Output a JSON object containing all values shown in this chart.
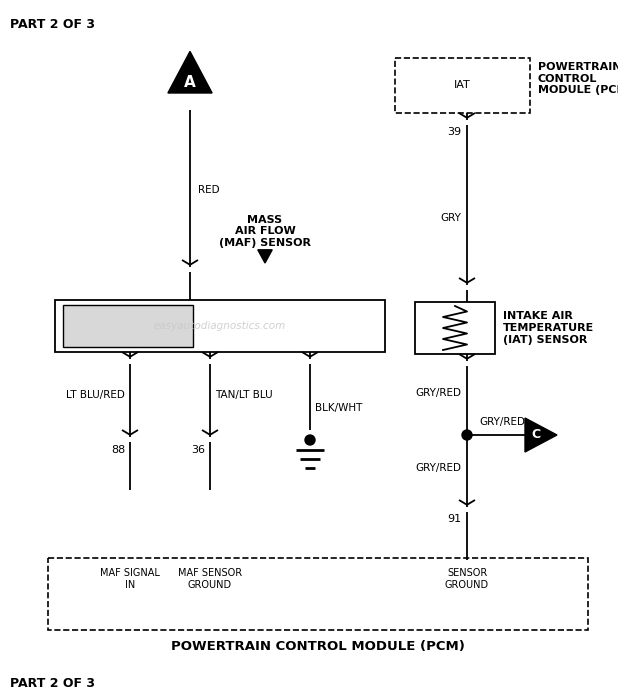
{
  "title_top": "PART 2 OF 3",
  "title_bottom": "PART 2 OF 3",
  "pcm_label_bottom": "POWERTRAIN CONTROL MODULE (PCM)",
  "pcm_label_top": "POWERTRAIN\nCONTROL\nMODULE (PCM)",
  "watermark": "easyautodiagnostics.com",
  "bg_color": "#ffffff",
  "line_color": "#000000",
  "text_color": "#000000",
  "maf_sensor_label": "MASS\nAIR FLOW\n(MAF) SENSOR",
  "iat_sensor_label": "INTAKE AIR\nTEMPERATURE\n(IAT) SENSOR",
  "iat_pcm_label": "IAT",
  "pin_88_label": "88",
  "pin_36_label": "36",
  "pin_91_label": "91",
  "pin_39_label": "39",
  "wire_red_label": "RED",
  "wire_ltblu_red_label": "LT BLU/RED",
  "wire_tan_ltblu_label": "TAN/LT BLU",
  "wire_blk_wht_label": "BLK/WHT",
  "wire_gry_label": "GRY",
  "wire_gry_red_label1": "GRY/RED",
  "wire_gry_red_label2": "GRY/RED",
  "wire_gry_red_label3": "GRY/RED",
  "pcm_box_label_88": "MAF SIGNAL\nIN",
  "pcm_box_label_36": "MAF SENSOR\nGROUND",
  "pcm_box_label_91": "SENSOR\nGROUND"
}
